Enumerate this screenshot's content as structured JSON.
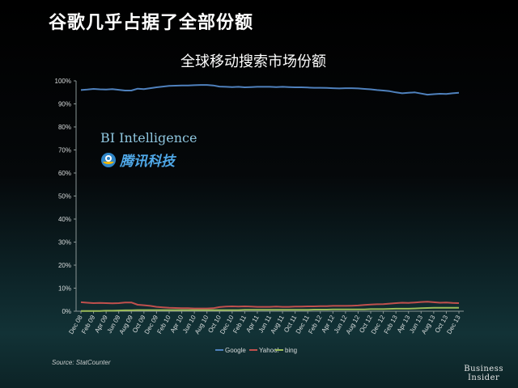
{
  "slide_title": "谷歌几乎占据了全部份额",
  "source": "Source: StatCounter",
  "brand": {
    "line1": "Business",
    "line2": "Insider"
  },
  "watermarks": {
    "bi_intelligence": "BI Intelligence",
    "tencent": "腾讯科技"
  },
  "colors": {
    "google": "#4f81bd",
    "yahoo": "#c0504d",
    "bing": "#9bbb59"
  },
  "chart_data": {
    "type": "line",
    "title": "全球移动搜索市场份额",
    "xlabel": "",
    "ylabel": "",
    "ylim": [
      0,
      100
    ],
    "y_ticks": [
      "0%",
      "10%",
      "20%",
      "30%",
      "40%",
      "50%",
      "60%",
      "70%",
      "80%",
      "90%",
      "100%"
    ],
    "x": [
      "Dec 08",
      "Jan 09",
      "Feb 09",
      "Mar 09",
      "Apr 09",
      "May 09",
      "Jun 09",
      "Jul 09",
      "Aug 09",
      "Sep 09",
      "Oct 09",
      "Nov 09",
      "Dec 09",
      "Jan 10",
      "Feb 10",
      "Mar 10",
      "Apr 10",
      "May 10",
      "Jun 10",
      "Jul 10",
      "Aug 10",
      "Sep 10",
      "Oct 10",
      "Nov 10",
      "Dec 10",
      "Jan 11",
      "Feb 11",
      "Mar 11",
      "Apr 11",
      "May 11",
      "Jun 11",
      "Jul 11",
      "Aug 11",
      "Sep 11",
      "Oct 11",
      "Nov 11",
      "Dec 11",
      "Jan 12",
      "Feb 12",
      "Mar 12",
      "Apr 12",
      "May 12",
      "Jun 12",
      "Jul 12",
      "Aug 12",
      "Sep 12",
      "Oct 12",
      "Nov 12",
      "Dec 12",
      "Jan 13",
      "Feb 13",
      "Mar 13",
      "Apr 13",
      "May 13",
      "Jun 13",
      "Jul 13",
      "Aug 13",
      "Sep 13",
      "Oct 13",
      "Nov 13",
      "Dec 13"
    ],
    "x_tick_labels": [
      "Dec 08",
      "Feb 09",
      "Apr 09",
      "Jun 09",
      "Aug 09",
      "Oct 09",
      "Dec 09",
      "Feb 10",
      "Apr 10",
      "Jun 10",
      "Aug 10",
      "Oct 10",
      "Dec 10",
      "Feb 11",
      "Apr 11",
      "Jun 11",
      "Aug 11",
      "Oct 11",
      "Dec 11",
      "Feb 12",
      "Apr 12",
      "Jun 12",
      "Aug 12",
      "Oct 12",
      "Dec 12",
      "Feb 13",
      "Apr 13",
      "Jun 13",
      "Aug 13",
      "Oct 13",
      "Dec 13"
    ],
    "series": [
      {
        "name": "Google",
        "values": [
          96,
          96.2,
          96.5,
          96.3,
          96.2,
          96.4,
          96.1,
          95.8,
          95.8,
          96.6,
          96.4,
          96.8,
          97.2,
          97.5,
          97.8,
          97.9,
          98.0,
          98.0,
          98.1,
          98.2,
          98.2,
          98.0,
          97.5,
          97.4,
          97.3,
          97.4,
          97.2,
          97.3,
          97.4,
          97.4,
          97.4,
          97.3,
          97.4,
          97.3,
          97.2,
          97.2,
          97.1,
          97.0,
          97.0,
          96.9,
          96.8,
          96.7,
          96.8,
          96.8,
          96.7,
          96.5,
          96.3,
          96.0,
          95.8,
          95.5,
          95.0,
          94.6,
          94.8,
          95.0,
          94.5,
          94.0,
          94.2,
          94.4,
          94.3,
          94.6,
          94.8
        ]
      },
      {
        "name": "Yahoo!",
        "values": [
          3.9,
          3.7,
          3.5,
          3.6,
          3.5,
          3.4,
          3.5,
          3.8,
          3.8,
          2.8,
          2.6,
          2.3,
          1.9,
          1.7,
          1.5,
          1.4,
          1.3,
          1.3,
          1.2,
          1.2,
          1.2,
          1.3,
          1.8,
          2.0,
          2.1,
          2.0,
          2.1,
          2.0,
          1.9,
          1.9,
          1.9,
          2.0,
          1.9,
          1.9,
          2.0,
          2.0,
          2.1,
          2.1,
          2.2,
          2.2,
          2.3,
          2.3,
          2.3,
          2.4,
          2.5,
          2.7,
          2.9,
          3.0,
          3.1,
          3.3,
          3.5,
          3.7,
          3.6,
          3.8,
          4.0,
          4.1,
          3.9,
          3.7,
          3.8,
          3.6,
          3.5
        ]
      },
      {
        "name": "bing",
        "values": [
          0.1,
          0.1,
          0.1,
          0.1,
          0.2,
          0.2,
          0.3,
          0.4,
          0.4,
          0.5,
          0.5,
          0.5,
          0.5,
          0.5,
          0.5,
          0.5,
          0.5,
          0.5,
          0.5,
          0.5,
          0.5,
          0.5,
          0.5,
          0.5,
          0.5,
          0.5,
          0.6,
          0.6,
          0.6,
          0.6,
          0.6,
          0.6,
          0.6,
          0.6,
          0.6,
          0.6,
          0.6,
          0.7,
          0.7,
          0.7,
          0.8,
          0.8,
          0.8,
          0.8,
          0.8,
          0.8,
          0.9,
          0.9,
          0.9,
          1.0,
          1.1,
          1.1,
          1.1,
          1.2,
          1.3,
          1.4,
          1.5,
          1.5,
          1.5,
          1.5,
          1.5
        ]
      }
    ],
    "legend_position": "bottom",
    "grid": false
  }
}
